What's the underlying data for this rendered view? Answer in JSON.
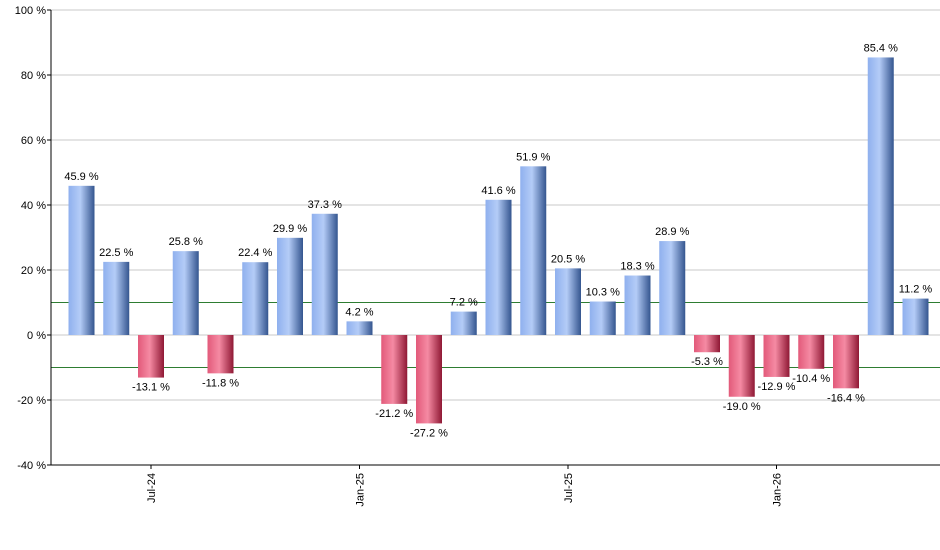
{
  "chart_data": {
    "type": "bar",
    "values": [
      45.9,
      22.5,
      -13.1,
      25.8,
      -11.8,
      22.4,
      29.9,
      37.3,
      4.2,
      -21.2,
      -27.2,
      7.2,
      41.6,
      51.9,
      20.5,
      10.3,
      18.3,
      28.9,
      -5.3,
      -19.0,
      -12.9,
      -10.4,
      -16.4,
      85.4,
      11.2
    ],
    "value_labels": [
      "45.9 %",
      "22.5 %",
      "-13.1 %",
      "25.8 %",
      "-11.8 %",
      "22.4 %",
      "29.9 %",
      "37.3 %",
      "4.2 %",
      "-21.2 %",
      "-27.2 %",
      "7.2 %",
      "41.6 %",
      "51.9 %",
      "20.5 %",
      "10.3 %",
      "18.3 %",
      "28.9 %",
      "-5.3 %",
      "-19.0 %",
      "-12.9 %",
      "-10.4 %",
      "-16.4 %",
      "85.4 %",
      "11.2 %"
    ],
    "ylim": [
      -40,
      100
    ],
    "y_ticks": [
      100,
      80,
      60,
      40,
      20,
      0,
      -20,
      -40
    ],
    "y_tick_labels": [
      "100 %",
      "80 %",
      "60 %",
      "40 %",
      "20 %",
      "0 %",
      "-20 %",
      "-40 %"
    ],
    "x_tick_labels": [
      {
        "label": "Jul-24",
        "at_bar": 2
      },
      {
        "label": "Jan-25",
        "at_bar": 8
      },
      {
        "label": "Jul-25",
        "at_bar": 14
      },
      {
        "label": "Jan-26",
        "at_bar": 20
      }
    ],
    "reference_lines": [
      10,
      -10
    ],
    "grid": true,
    "colors": {
      "positive_light": "#a9c4f5",
      "positive_dark": "#3a5a9c",
      "negative_light": "#f07a95",
      "negative_dark": "#9c1f3e",
      "reference_line": "#2e7d32",
      "grid": "#c8c8c8",
      "axis": "#000000"
    }
  }
}
